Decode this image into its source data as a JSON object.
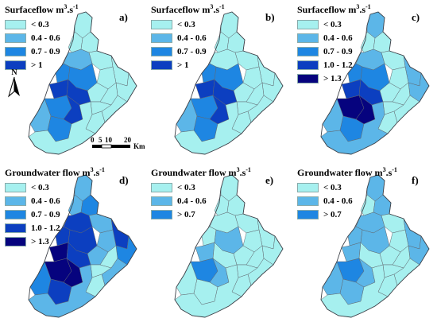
{
  "colors": {
    "c0": "#a6f0ef",
    "c1": "#5cb6e8",
    "c2": "#1e86e2",
    "c3": "#0c3fc0",
    "c4": "#06037e",
    "outline": "#606870"
  },
  "panels": [
    {
      "id": "a",
      "title": "Surfaceflow m",
      "title_sup": "3",
      "title_rest": ".s",
      "title_sup2": "-1",
      "label": "a)",
      "legend": [
        {
          "text": "< 0.3",
          "color": "c0"
        },
        {
          "text": "0.4 - 0.6",
          "color": "c1"
        },
        {
          "text": "0.7 - 0.9",
          "color": "c2"
        },
        {
          "text": "> 1",
          "color": "c3"
        }
      ],
      "fills": [
        "c0",
        "c0",
        "c0",
        "c0",
        "c0",
        "c0",
        "c0",
        "c0",
        "c0",
        "c0",
        "c0",
        "c0",
        "c1",
        "c2",
        "c2",
        "c3",
        "c3",
        "c2",
        "c3",
        "c1",
        "c2",
        "c0"
      ]
    },
    {
      "id": "b",
      "title": "Surfaceflow m",
      "title_sup": "3",
      "title_rest": ".s",
      "title_sup2": "-1",
      "label": "b)",
      "legend": [
        {
          "text": "< 0.3",
          "color": "c0"
        },
        {
          "text": "0.4 - 0.6",
          "color": "c1"
        },
        {
          "text": "0.7 - 0.9",
          "color": "c2"
        },
        {
          "text": "> 1",
          "color": "c3"
        }
      ],
      "fills": [
        "c0",
        "c0",
        "c0",
        "c0",
        "c0",
        "c0",
        "c0",
        "c0",
        "c0",
        "c0",
        "c0",
        "c0",
        "c0",
        "c2",
        "c2",
        "c3",
        "c3",
        "c2",
        "c3",
        "c1",
        "c2",
        "c0"
      ]
    },
    {
      "id": "c",
      "title": "Surfaceflow m",
      "title_sup": "3",
      "title_rest": ".s",
      "title_sup2": "-1",
      "label": "c)",
      "legend": [
        {
          "text": "< 0.3",
          "color": "c0"
        },
        {
          "text": "0.4 - 0.6",
          "color": "c1"
        },
        {
          "text": "0.7 - 0.9",
          "color": "c2"
        },
        {
          "text": "1.0 - 1.2",
          "color": "c3"
        },
        {
          "text": "> 1.3",
          "color": "c4"
        }
      ],
      "fills": [
        "c1",
        "c0",
        "c0",
        "c0",
        "c1",
        "c0",
        "c1",
        "c0",
        "c0",
        "c0",
        "c0",
        "c0",
        "c1",
        "c2",
        "c2",
        "c3",
        "c3",
        "c4",
        "c4",
        "c1",
        "c2",
        "c1"
      ]
    },
    {
      "id": "d",
      "title": "Groundwater flow m",
      "title_sup": "3",
      "title_rest": ".s",
      "title_sup2": "-1",
      "label": "d)",
      "legend": [
        {
          "text": "< 0.3",
          "color": "c0"
        },
        {
          "text": "0.4 - 0.6",
          "color": "c1"
        },
        {
          "text": "0.7 - 0.9",
          "color": "c2"
        },
        {
          "text": "1.0 - 1.2",
          "color": "c3"
        },
        {
          "text": "> 1.3",
          "color": "c4"
        }
      ],
      "fills": [
        "c1",
        "c1",
        "c2",
        "c1",
        "c3",
        "c1",
        "c2",
        "c0",
        "c1",
        "c1",
        "c0",
        "c0",
        "c3",
        "c3",
        "c3",
        "c4",
        "c3",
        "c4",
        "c4",
        "c2",
        "c3",
        "c1"
      ]
    },
    {
      "id": "e",
      "title": "Groundwater flow m",
      "title_sup": "3",
      "title_rest": ".s",
      "title_sup2": "-1",
      "label": "e)",
      "legend": [
        {
          "text": "< 0.3",
          "color": "c0"
        },
        {
          "text": "0.4 - 0.6",
          "color": "c1"
        },
        {
          "text": "> 0.7",
          "color": "c2"
        }
      ],
      "fills": [
        "c0",
        "c0",
        "c0",
        "c0",
        "c0",
        "c0",
        "c0",
        "c0",
        "c0",
        "c0",
        "c0",
        "c0",
        "c0",
        "c0",
        "c1",
        "c1",
        "c0",
        "c2",
        "c1",
        "c0",
        "c0",
        "c0"
      ]
    },
    {
      "id": "f",
      "title": "Groundwater flow m",
      "title_sup": "3",
      "title_rest": ".s",
      "title_sup2": "-1",
      "label": "f)",
      "legend": [
        {
          "text": "< 0.3",
          "color": "c0"
        },
        {
          "text": "0.4 - 0.6",
          "color": "c1"
        },
        {
          "text": "> 0.7",
          "color": "c2"
        }
      ],
      "fills": [
        "c1",
        "c0",
        "c1",
        "c0",
        "c1",
        "c0",
        "c1",
        "c0",
        "c0",
        "c0",
        "c0",
        "c0",
        "c1",
        "c1",
        "c1",
        "c1",
        "c0",
        "c2",
        "c1",
        "c1",
        "c1",
        "c0"
      ]
    }
  ],
  "north_label": "N",
  "scale": {
    "ticks": [
      "0",
      "5",
      "10",
      "20"
    ],
    "unit": "Km"
  }
}
